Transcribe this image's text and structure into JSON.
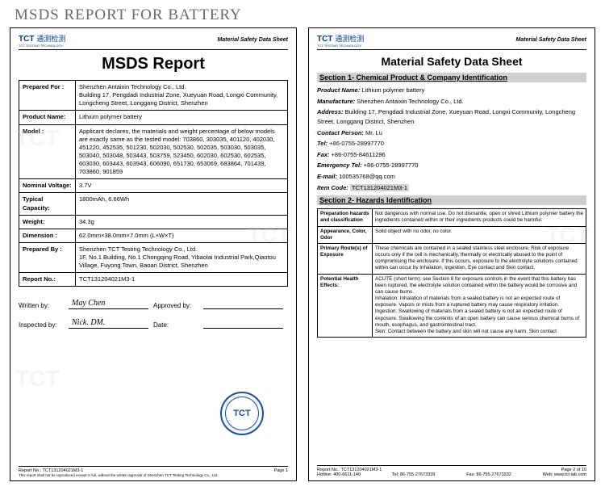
{
  "page_title": "MSDS REPORT FOR BATTERY",
  "logo": {
    "brand": "TCT",
    "cn": "通测检测",
    "sub": "TCT TESTING TECHNOLOGY"
  },
  "header_right": "Material Safety Data Sheet",
  "doc1": {
    "title": "MSDS Report",
    "rows": {
      "prepared_for_k": "Prepared For :",
      "prepared_for_v": "Shenzhen Antaixin Technology Co., Ltd.\nBuilding 17, Pengdadi Industrial Zone, Xueyuan Road, Longxi Community, Longcheng Street, Longgang District, Shenzhen",
      "product_name_k": "Product Name:",
      "product_name_v": "Lithium polymer battery",
      "model_k": "Model :",
      "model_v": "Applicant declares, the materials and weight percentage of below models are exactly same as the tested model: 703860, 303035, 401120, 402030, 451220, 452535, 501230, 502030, 502530, 502035, 503030, 503035, 503040, 503048, 503443, 503759, 523450, 602030, 602530, 602535, 603030, 603443, 603943, 606090, 651730, 653069, 683864, 701439, 703860, 901859",
      "voltage_k": "Nominal Voltage:",
      "voltage_v": "3.7V",
      "capacity_k": "Typical Capacity:",
      "capacity_v": "1800mAh, 6.66Wh",
      "weight_k": "Weight:",
      "weight_v": "34.3g",
      "dimension_k": "Dimension :",
      "dimension_v": "62.0mm×38.0mm×7.0mm (L×W×T)",
      "prepared_by_k": "Prepared By :",
      "prepared_by_v": "Shenzhen TCT Testing Technology Co., Ltd.\n1F, No.1 Building, No.1 Chongqing Road, Yibaolai Industrial Park,Qiaotou Village, Fuyong Town, Baoan District, Shenzhen",
      "report_no_k": "Report No.:",
      "report_no_v": "TCT131204021M3-1"
    },
    "sig": {
      "written_by_l": "Written by:",
      "written_by_v": "May Chen",
      "approved_by_l": "Approved by:",
      "inspected_by_l": "Inspected by:",
      "inspected_by_v": "Nick. DM.",
      "date_l": "Date:"
    },
    "seal": "TCT",
    "footer": {
      "report": "Report No.: TCT131204021M3-1",
      "page": "Page 1",
      "fine": "This report shall not be reproduced except in full, without the written approval of Shenzhen TCT Testing Technology Co., Ltd."
    }
  },
  "doc2": {
    "title": "Material Safety Data Sheet",
    "section1_head": "Section 1- Chemical Product & Company Identification",
    "s1": {
      "product_name_l": "Product Name:",
      "product_name_v": "Lithium polymer battery",
      "manufacture_l": "Manufacture:",
      "manufacture_v": "Shenzhen Antaixin Technology Co., Ltd.",
      "address_l": "Address:",
      "address_v": "Building 17, Pengdadi Industrial Zone, Xueyuan Road, Longxi Community, Longcheng Street, Longgang District, Shenzhen",
      "contact_l": "Contact Person:",
      "contact_v": "Mr. Lu",
      "tel_l": "Tel:",
      "tel_v": "+86-0755-28997770",
      "fax_l": "Fax:",
      "fax_v": "+86-0755-84611296",
      "emergency_l": "Emergency Tel:",
      "emergency_v": "+86-0755-28997770",
      "email_l": "E-mail:",
      "email_v": "100535768@qq.com",
      "item_code_l": "Item Code:",
      "item_code_v": "TCT131204021M3-1"
    },
    "section2_head": "Section 2- Hazards Identification",
    "s2": {
      "prep_k": "Preparation hazards and classification",
      "prep_v": "Not dangerous with normal use. Do not dismantle, open or shred Lithium polymer battery the ingredients contained within or their ingredients products could be harmful.",
      "app_k": "Appearance, Color, Odor",
      "app_v": "Solid object with no odor, no color.",
      "route_k": "Primary Route(s) of Exposure",
      "route_v": "These chemicals are contained in a sealed stainless steel enclosure. Risk of exposure occurs only if the cell is mechanically, thermally or electrically abused to the point of compromising the enclosure. If this occurs, exposure to the electrolyte solutions contained within can occur by Inhalation, Ingestion, Eye contact and Skin contact.",
      "health_k": "Potential Health Effects:",
      "health_v1": "ACUTE (short term): see Section 8 for exposure controls in the event that this battery has been ruptured, the electrolyte solution contained within the battery would be corrosive and can cause burns.",
      "health_v2": "Inhalation: Inhalation of materials from a sealed battery is not an expected route of exposure. Vapors or mists from a ruptured battery may cause respiratory irritation.",
      "health_v3": "Ingestion: Swallowing of materials from a sealed battery is not an expected route of exposure. Swallowing the contents of an open battery can cause serious chemical burns of mouth, esophagus, and gastrointestinal tract.",
      "health_v4": "Skin: Contact between the battery and skin will not cause any harm. Skin contact"
    },
    "footer": {
      "report": "Report No.: TCT131204021M3-1",
      "page": "Page 2 of 10",
      "hotline_l": "Hotline:",
      "hotline_v": "400-6611-140",
      "tel_l": "Tel:",
      "tel_v": "86-755-27673339",
      "fax_l": "Fax:",
      "fax_v": "86-755-27673332",
      "web_l": "Web:",
      "web_v": "www.tct-lab.com"
    }
  },
  "watermark": "TCT",
  "colors": {
    "title_gray": "#6a6a6a",
    "logo_blue": "#003a8c",
    "seal_blue": "#1a4fa3",
    "section_bg": "#d0d0d0"
  }
}
